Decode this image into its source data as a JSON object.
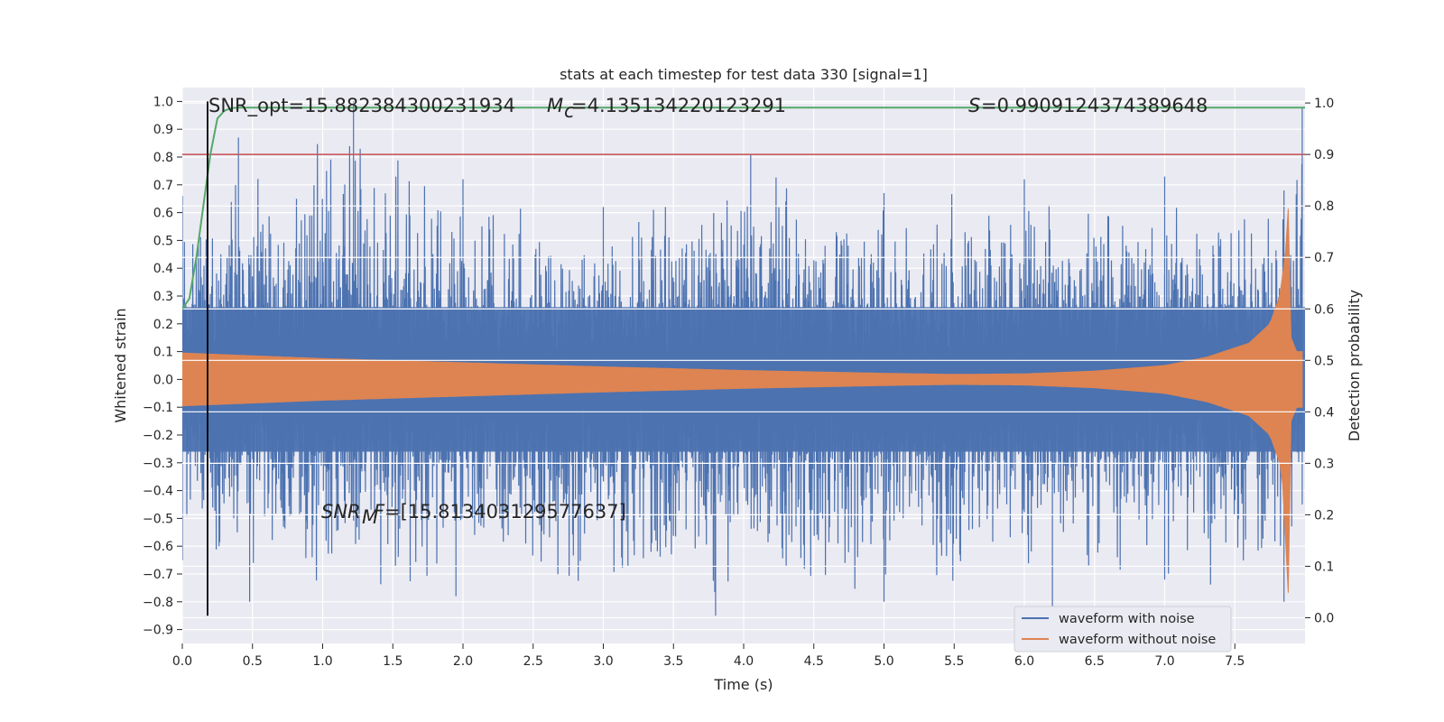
{
  "chart_data": {
    "type": "line",
    "title": "stats at each timestep for test data 330 [signal=1]",
    "xlabel": "Time (s)",
    "ylabel": "Whitened strain",
    "ylabel_right": "Detection probability",
    "xlim": [
      0.0,
      8.0
    ],
    "ylim": [
      -0.95,
      1.05
    ],
    "ylim_right": [
      -0.05,
      1.03
    ],
    "x_ticks": [
      "0.0",
      "0.5",
      "1.0",
      "1.5",
      "2.0",
      "2.5",
      "3.0",
      "3.5",
      "4.0",
      "4.5",
      "5.0",
      "5.5",
      "6.0",
      "6.5",
      "7.0",
      "7.5"
    ],
    "y_ticks": [
      "1.0",
      "0.9",
      "0.8",
      "0.7",
      "0.6",
      "0.5",
      "0.4",
      "0.3",
      "0.2",
      "0.1",
      "0.0",
      "−0.1",
      "−0.2",
      "−0.3",
      "−0.4",
      "−0.5",
      "−0.6",
      "−0.7",
      "−0.8",
      "−0.9"
    ],
    "y_ticks_right": [
      "1.0",
      "0.9",
      "0.8",
      "0.7",
      "0.6",
      "0.5",
      "0.4",
      "0.3",
      "0.2",
      "0.1",
      "0.0"
    ],
    "grid": true,
    "legend_position": "lower-right",
    "series": [
      {
        "name": "waveform with noise",
        "color": "#4c72b0",
        "axis": "left",
        "envelope_upper": [
          [
            0.0,
            0.66
          ],
          [
            0.4,
            0.87
          ],
          [
            1.22,
            1.0
          ],
          [
            2.0,
            0.72
          ],
          [
            3.0,
            0.62
          ],
          [
            4.05,
            0.81
          ],
          [
            5.0,
            0.67
          ],
          [
            6.0,
            0.72
          ],
          [
            7.0,
            0.73
          ],
          [
            7.85,
            0.68
          ],
          [
            7.98,
            0.98
          ]
        ],
        "envelope_lower": [
          [
            0.0,
            -0.65
          ],
          [
            0.48,
            -0.8
          ],
          [
            1.95,
            -0.78
          ],
          [
            3.8,
            -0.85
          ],
          [
            5.0,
            -0.8
          ],
          [
            6.2,
            -0.82
          ],
          [
            7.0,
            -0.72
          ],
          [
            7.85,
            -0.8
          ],
          [
            7.98,
            -0.45
          ]
        ]
      },
      {
        "name": "waveform without noise",
        "color": "#dd8452",
        "axis": "left",
        "amplitude": [
          [
            0.0,
            0.095
          ],
          [
            0.5,
            0.085
          ],
          [
            1.0,
            0.075
          ],
          [
            2.0,
            0.06
          ],
          [
            3.0,
            0.045
          ],
          [
            4.0,
            0.032
          ],
          [
            5.0,
            0.022
          ],
          [
            5.5,
            0.018
          ],
          [
            6.0,
            0.02
          ],
          [
            6.5,
            0.03
          ],
          [
            7.0,
            0.05
          ],
          [
            7.3,
            0.08
          ],
          [
            7.6,
            0.13
          ],
          [
            7.75,
            0.2
          ],
          [
            7.82,
            0.3
          ],
          [
            7.86,
            0.45
          ],
          [
            7.88,
            0.62
          ],
          [
            7.9,
            0.15
          ],
          [
            7.94,
            0.1
          ],
          [
            7.98,
            0.1
          ]
        ]
      },
      {
        "name": "detection probability",
        "color": "#55a868",
        "axis": "right",
        "points": [
          [
            0.0,
            0.6
          ],
          [
            0.05,
            0.62
          ],
          [
            0.1,
            0.7
          ],
          [
            0.15,
            0.8
          ],
          [
            0.2,
            0.9
          ],
          [
            0.25,
            0.97
          ],
          [
            0.3,
            0.985
          ],
          [
            0.35,
            0.99
          ],
          [
            0.4,
            0.991
          ],
          [
            0.5,
            0.991
          ],
          [
            8.0,
            0.991
          ]
        ]
      }
    ],
    "threshold_right": {
      "value": 0.9,
      "color": "#c44e52"
    },
    "vertical_marker": {
      "x": 0.18,
      "color": "#000000"
    },
    "annotations": {
      "snr_opt": "SNR_opt=15.882384300231934",
      "mc": "=4.135134220123291",
      "s": "=0.9909124374389648",
      "snr_mf": "=[15.813403129577637]"
    }
  }
}
